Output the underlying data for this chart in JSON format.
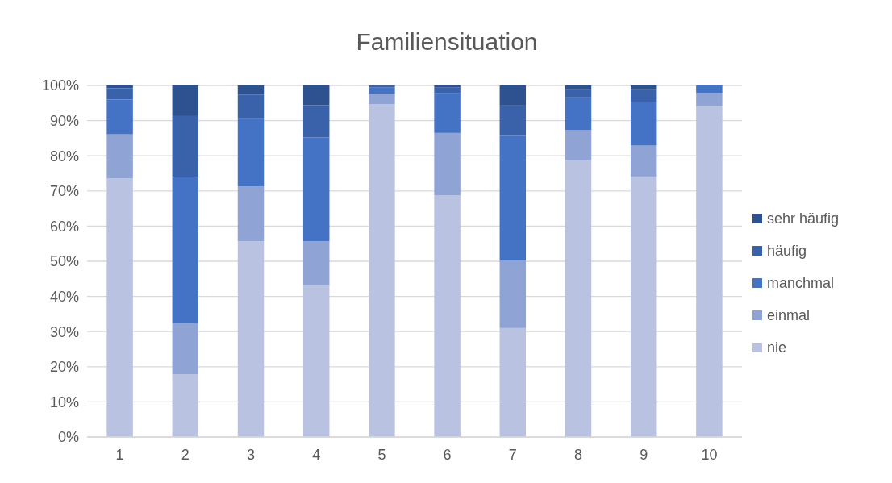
{
  "chart_data": {
    "type": "bar",
    "title": "Familiensituation",
    "stacked": true,
    "categories": [
      "1",
      "2",
      "3",
      "4",
      "5",
      "6",
      "7",
      "8",
      "9",
      "10"
    ],
    "series": [
      {
        "name": "nie",
        "color": "#b9c3e1",
        "values": [
          73.6,
          17.8,
          55.7,
          43.1,
          94.7,
          68.8,
          31.0,
          78.7,
          74.1,
          94.0
        ]
      },
      {
        "name": "einmal",
        "color": "#8fa3d4",
        "values": [
          12.5,
          14.6,
          15.6,
          12.6,
          3.0,
          17.7,
          19.2,
          8.6,
          8.8,
          3.9
        ]
      },
      {
        "name": "manchmal",
        "color": "#4472c4",
        "values": [
          9.9,
          41.6,
          19.5,
          29.5,
          1.8,
          11.4,
          35.5,
          9.3,
          12.5,
          2.1
        ]
      },
      {
        "name": "häufig",
        "color": "#3a62aa",
        "values": [
          3.2,
          17.3,
          6.6,
          9.2,
          0.3,
          1.6,
          8.6,
          2.3,
          3.5,
          0
        ]
      },
      {
        "name": "sehr häufig",
        "color": "#2e528f",
        "values": [
          0.8,
          8.7,
          2.6,
          5.6,
          0.2,
          0.5,
          5.7,
          1.1,
          1.1,
          0
        ]
      }
    ],
    "ylim": [
      0,
      100
    ],
    "yticks": [
      {
        "value": 0,
        "label": "0%"
      },
      {
        "value": 10,
        "label": "10%"
      },
      {
        "value": 20,
        "label": "20%"
      },
      {
        "value": 30,
        "label": "30%"
      },
      {
        "value": 40,
        "label": "40%"
      },
      {
        "value": 50,
        "label": "50%"
      },
      {
        "value": 60,
        "label": "60%"
      },
      {
        "value": 70,
        "label": "70%"
      },
      {
        "value": 80,
        "label": "80%"
      },
      {
        "value": 90,
        "label": "90%"
      },
      {
        "value": 100,
        "label": "100%"
      }
    ],
    "grid": "y",
    "legend": "right"
  }
}
